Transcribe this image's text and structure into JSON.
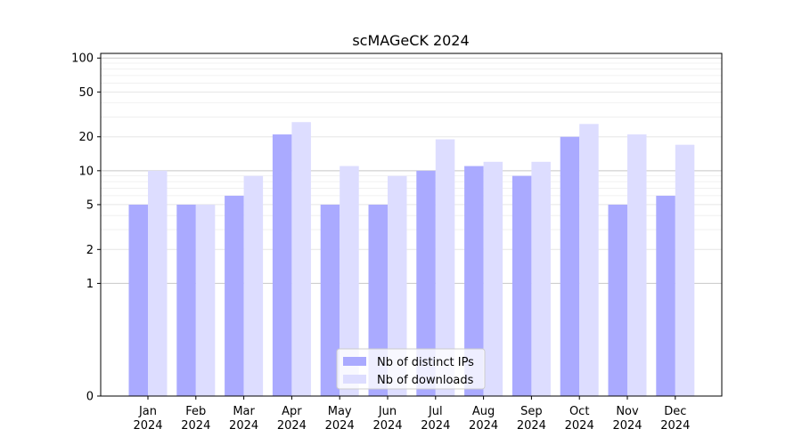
{
  "chart_data": {
    "type": "bar",
    "title": "scMAGeCK 2024",
    "xlabel": "",
    "ylabel": "",
    "yscale": "symlog",
    "ylim": [
      0,
      110
    ],
    "yticks": [
      0,
      1,
      2,
      5,
      10,
      20,
      50,
      100
    ],
    "grid": true,
    "legend_position": "lower-center",
    "categories": [
      [
        "Jan",
        "2024"
      ],
      [
        "Feb",
        "2024"
      ],
      [
        "Mar",
        "2024"
      ],
      [
        "Apr",
        "2024"
      ],
      [
        "May",
        "2024"
      ],
      [
        "Jun",
        "2024"
      ],
      [
        "Jul",
        "2024"
      ],
      [
        "Aug",
        "2024"
      ],
      [
        "Sep",
        "2024"
      ],
      [
        "Oct",
        "2024"
      ],
      [
        "Nov",
        "2024"
      ],
      [
        "Dec",
        "2024"
      ]
    ],
    "series": [
      {
        "name": "Nb of distinct IPs",
        "color": "#aaaaff",
        "values": [
          5,
          5,
          6,
          21,
          5,
          5,
          10,
          11,
          9,
          20,
          5,
          6
        ]
      },
      {
        "name": "Nb of downloads",
        "color": "#ddddff",
        "values": [
          10,
          5,
          9,
          27,
          11,
          9,
          19,
          12,
          12,
          26,
          21,
          17
        ]
      }
    ]
  }
}
